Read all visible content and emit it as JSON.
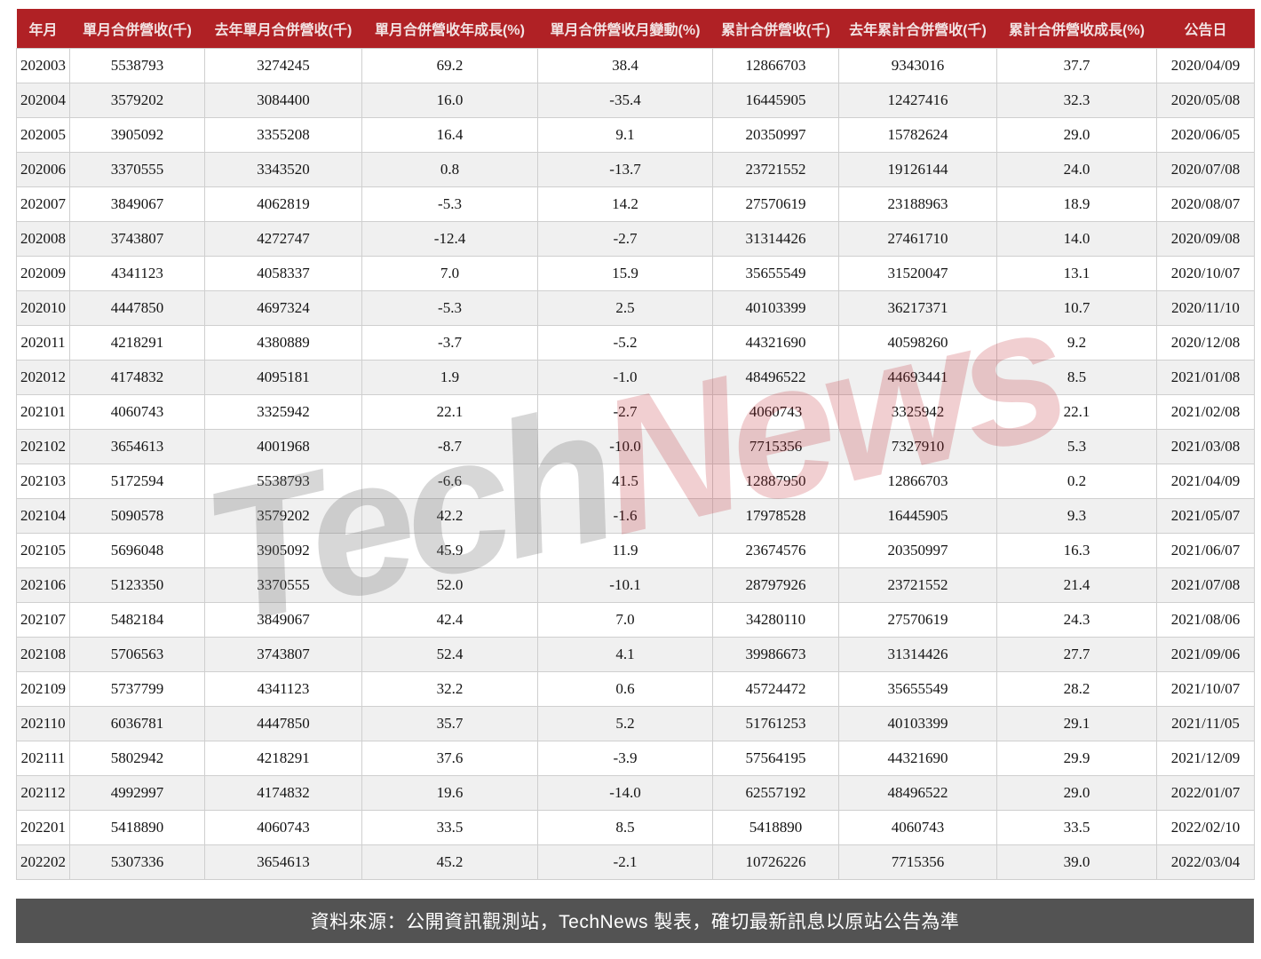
{
  "chart_data": {
    "type": "table",
    "columns": [
      "年月",
      "單月合併營收(千)",
      "去年單月合併營收(千)",
      "單月合併營收年成長(%)",
      "單月合併營收月變動(%)",
      "累計合併營收(千)",
      "去年累計合併營收(千)",
      "累計合併營收成長(%)",
      "公告日"
    ],
    "rows": [
      [
        "202003",
        "5538793",
        "3274245",
        "69.2",
        "38.4",
        "12866703",
        "9343016",
        "37.7",
        "2020/04/09"
      ],
      [
        "202004",
        "3579202",
        "3084400",
        "16.0",
        "-35.4",
        "16445905",
        "12427416",
        "32.3",
        "2020/05/08"
      ],
      [
        "202005",
        "3905092",
        "3355208",
        "16.4",
        "9.1",
        "20350997",
        "15782624",
        "29.0",
        "2020/06/05"
      ],
      [
        "202006",
        "3370555",
        "3343520",
        "0.8",
        "-13.7",
        "23721552",
        "19126144",
        "24.0",
        "2020/07/08"
      ],
      [
        "202007",
        "3849067",
        "4062819",
        "-5.3",
        "14.2",
        "27570619",
        "23188963",
        "18.9",
        "2020/08/07"
      ],
      [
        "202008",
        "3743807",
        "4272747",
        "-12.4",
        "-2.7",
        "31314426",
        "27461710",
        "14.0",
        "2020/09/08"
      ],
      [
        "202009",
        "4341123",
        "4058337",
        "7.0",
        "15.9",
        "35655549",
        "31520047",
        "13.1",
        "2020/10/07"
      ],
      [
        "202010",
        "4447850",
        "4697324",
        "-5.3",
        "2.5",
        "40103399",
        "36217371",
        "10.7",
        "2020/11/10"
      ],
      [
        "202011",
        "4218291",
        "4380889",
        "-3.7",
        "-5.2",
        "44321690",
        "40598260",
        "9.2",
        "2020/12/08"
      ],
      [
        "202012",
        "4174832",
        "4095181",
        "1.9",
        "-1.0",
        "48496522",
        "44693441",
        "8.5",
        "2021/01/08"
      ],
      [
        "202101",
        "4060743",
        "3325942",
        "22.1",
        "-2.7",
        "4060743",
        "3325942",
        "22.1",
        "2021/02/08"
      ],
      [
        "202102",
        "3654613",
        "4001968",
        "-8.7",
        "-10.0",
        "7715356",
        "7327910",
        "5.3",
        "2021/03/08"
      ],
      [
        "202103",
        "5172594",
        "5538793",
        "-6.6",
        "41.5",
        "12887950",
        "12866703",
        "0.2",
        "2021/04/09"
      ],
      [
        "202104",
        "5090578",
        "3579202",
        "42.2",
        "-1.6",
        "17978528",
        "16445905",
        "9.3",
        "2021/05/07"
      ],
      [
        "202105",
        "5696048",
        "3905092",
        "45.9",
        "11.9",
        "23674576",
        "20350997",
        "16.3",
        "2021/06/07"
      ],
      [
        "202106",
        "5123350",
        "3370555",
        "52.0",
        "-10.1",
        "28797926",
        "23721552",
        "21.4",
        "2021/07/08"
      ],
      [
        "202107",
        "5482184",
        "3849067",
        "42.4",
        "7.0",
        "34280110",
        "27570619",
        "24.3",
        "2021/08/06"
      ],
      [
        "202108",
        "5706563",
        "3743807",
        "52.4",
        "4.1",
        "39986673",
        "31314426",
        "27.7",
        "2021/09/06"
      ],
      [
        "202109",
        "5737799",
        "4341123",
        "32.2",
        "0.6",
        "45724472",
        "35655549",
        "28.2",
        "2021/10/07"
      ],
      [
        "202110",
        "6036781",
        "4447850",
        "35.7",
        "5.2",
        "51761253",
        "40103399",
        "29.1",
        "2021/11/05"
      ],
      [
        "202111",
        "5802942",
        "4218291",
        "37.6",
        "-3.9",
        "57564195",
        "44321690",
        "29.9",
        "2021/12/09"
      ],
      [
        "202112",
        "4992997",
        "4174832",
        "19.6",
        "-14.0",
        "62557192",
        "48496522",
        "29.0",
        "2022/01/07"
      ],
      [
        "202201",
        "5418890",
        "4060743",
        "33.5",
        "8.5",
        "5418890",
        "4060743",
        "33.5",
        "2022/02/10"
      ],
      [
        "202202",
        "5307336",
        "3654613",
        "45.2",
        "-2.1",
        "10726226",
        "7715356",
        "39.0",
        "2022/03/04"
      ]
    ]
  },
  "watermark": {
    "tech": "Tech",
    "news": "News"
  },
  "footer": {
    "text": "資料來源：公開資訊觀測站，TechNews 製表，確切最新訊息以原站公告為準"
  },
  "colors": {
    "header_bg": "#b02125",
    "header_text": "#f2e3e3",
    "row_alt_bg": "#f0f0f0",
    "cell_border": "#cfcfcf",
    "footer_bg": "#535353",
    "watermark_gray": "rgba(110,110,110,0.28)",
    "watermark_red": "rgba(190,35,45,0.22)"
  }
}
